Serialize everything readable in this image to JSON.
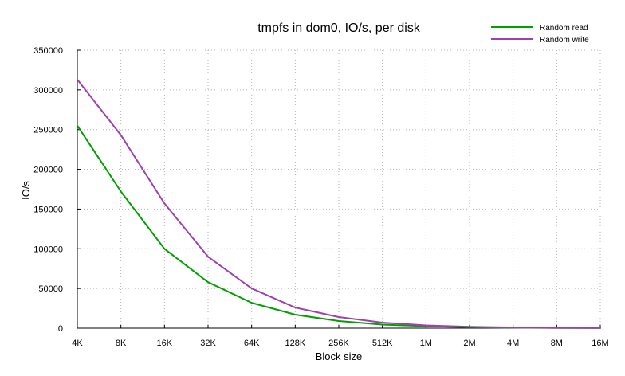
{
  "chart_data": {
    "type": "line",
    "title": "tmpfs in dom0, IO/s, per disk",
    "xlabel": "Block size",
    "ylabel": "IO/s",
    "categories": [
      "4K",
      "8K",
      "16K",
      "32K",
      "64K",
      "128K",
      "256K",
      "512K",
      "1M",
      "2M",
      "4M",
      "8M",
      "16M"
    ],
    "ylim": [
      0,
      350000
    ],
    "y_ticks": [
      0,
      50000,
      100000,
      150000,
      200000,
      250000,
      300000,
      350000
    ],
    "y_tick_labels": [
      "0",
      "50000",
      "100000",
      "150000",
      "200000",
      "250000",
      "300000",
      "350000"
    ],
    "grid": true,
    "legend_position": "top-right",
    "series": [
      {
        "name": "Random read",
        "color": "#00a000",
        "values": [
          255000,
          172000,
          100000,
          58000,
          32000,
          17000,
          9000,
          4500,
          2500,
          1200,
          600,
          300,
          150
        ]
      },
      {
        "name": "Random write",
        "color": "#a040b0",
        "values": [
          313000,
          243000,
          157000,
          90000,
          50000,
          26000,
          14000,
          7000,
          3500,
          1800,
          900,
          450,
          220
        ]
      }
    ]
  }
}
